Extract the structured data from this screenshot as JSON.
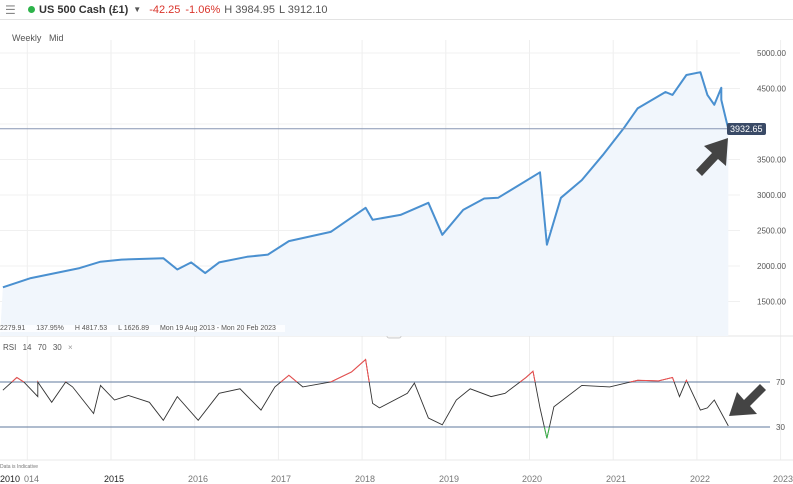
{
  "header": {
    "menu_icon": "hamburger-icon",
    "status_color": "#2db34a",
    "instrument": "US 500 Cash (£1)",
    "change": "-42.25",
    "change_pct": "-1.06%",
    "high": "H 3984.95",
    "low": "L 3912.10"
  },
  "toolbar": {
    "interval": "Weekly",
    "price_type": "Mid"
  },
  "stats": {
    "value": "2279.91",
    "pct": "137.95%",
    "high": "H 4817.53",
    "low": "L 1626.89",
    "range": "Mon 19 Aug 2013 - Mon 20 Feb 2023"
  },
  "rsi_label": {
    "name": "RSI",
    "period": "14",
    "upper": "70",
    "lower": "30",
    "close": "×"
  },
  "note": "Data is Indicative",
  "current_price": "3932.65",
  "colors": {
    "price_line": "#4a90d0",
    "price_fill": "#f1f6fc",
    "rsi_line": "#333333",
    "overbought": "#f05050",
    "oversold": "#3cb44b",
    "price_tag": "#3a4a66"
  },
  "chart_data": [
    {
      "type": "area",
      "title": "",
      "y_ticks": [
        "1500.00",
        "2000.00",
        "2500.00",
        "3000.00",
        "3500.00",
        "4500.00",
        "5000.00"
      ],
      "ylim": [
        1000,
        5400
      ],
      "x_ticks": [
        "2010",
        "014",
        "2015",
        "2016",
        "2017",
        "2018",
        "2019",
        "2020",
        "2021",
        "2022",
        "2023"
      ],
      "x": [
        "2013-09",
        "2014-01",
        "2014-08",
        "2014-11",
        "2015-02",
        "2015-08",
        "2015-10",
        "2015-12",
        "2016-02",
        "2016-04",
        "2016-08",
        "2016-11",
        "2017-02",
        "2017-08",
        "2018-01",
        "2018-02",
        "2018-06",
        "2018-10",
        "2018-12",
        "2019-03",
        "2019-06",
        "2019-08",
        "2019-11",
        "2020-02",
        "2020-03",
        "2020-05",
        "2020-08",
        "2020-11",
        "2021-02",
        "2021-04",
        "2021-08",
        "2021-09",
        "2021-11",
        "2022-01",
        "2022-02",
        "2022-03",
        "2022-04",
        "2022-04",
        "2022-05"
      ],
      "values": [
        1700,
        1830,
        1970,
        2060,
        2090,
        2110,
        1950,
        2050,
        1900,
        2050,
        2130,
        2160,
        2350,
        2480,
        2820,
        2650,
        2720,
        2890,
        2440,
        2790,
        2950,
        2960,
        3140,
        3320,
        2300,
        2960,
        3210,
        3560,
        3940,
        4220,
        4450,
        4410,
        4690,
        4730,
        4410,
        4270,
        4510,
        4340,
        3930
      ]
    },
    {
      "type": "line",
      "title": "RSI",
      "y_ticks": [
        "70",
        "30"
      ],
      "ylim": [
        10,
        95
      ],
      "thresholds": [
        70,
        30
      ],
      "x": [
        "2013-09",
        "2013-11",
        "2013-12",
        "2014-02",
        "2014-02",
        "2014-04",
        "2014-06",
        "2014-07",
        "2014-10",
        "2014-11",
        "2015-01",
        "2015-03",
        "2015-06",
        "2015-08",
        "2015-10",
        "2016-01",
        "2016-04",
        "2016-07",
        "2016-10",
        "2016-12",
        "2017-02",
        "2017-04",
        "2017-08",
        "2017-11",
        "2018-01",
        "2018-02",
        "2018-03",
        "2018-07",
        "2018-08",
        "2018-10",
        "2018-12",
        "2019-02",
        "2019-04",
        "2019-07",
        "2019-09",
        "2019-12",
        "2020-01",
        "2020-02",
        "2020-03",
        "2020-04",
        "2020-08",
        "2020-12",
        "2021-04",
        "2021-07",
        "2021-09",
        "2021-10",
        "2021-11",
        "2022-01",
        "2022-02",
        "2022-03",
        "2022-05"
      ],
      "values": [
        62.7,
        74,
        70,
        57,
        70,
        52,
        70,
        65.6,
        42,
        67,
        54,
        58,
        52,
        36,
        57,
        36,
        60,
        64,
        45,
        65.6,
        76,
        65.6,
        70,
        79,
        90,
        51,
        47,
        60,
        69,
        38,
        32,
        54,
        64,
        57,
        60,
        74,
        79.6,
        47,
        20,
        48,
        67,
        65.6,
        71.5,
        71,
        74,
        57,
        71.5,
        45,
        47,
        54,
        31
      ]
    }
  ]
}
